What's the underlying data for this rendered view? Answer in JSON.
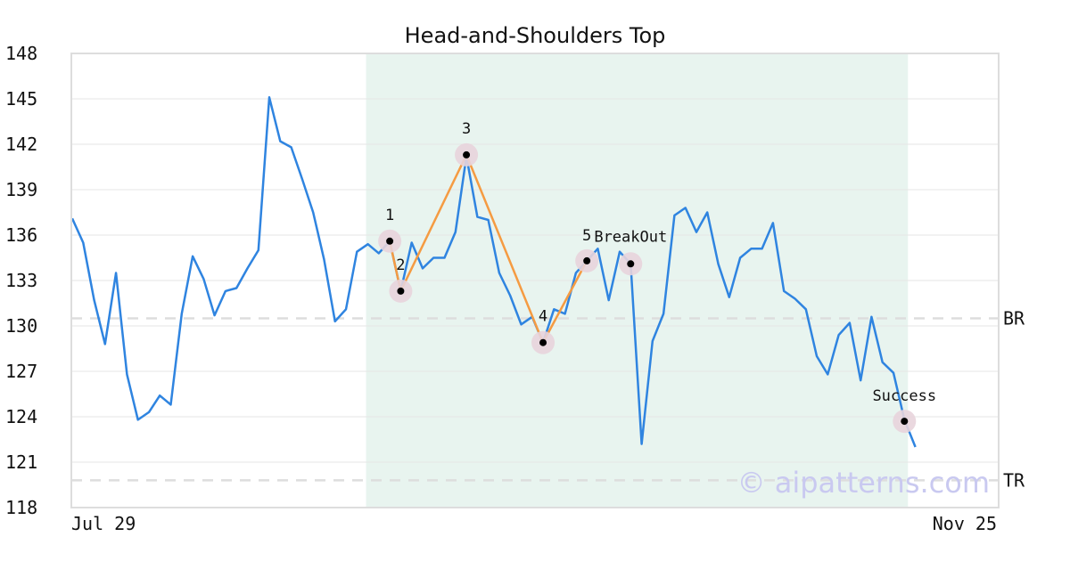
{
  "chart_data": {
    "type": "line",
    "title": "Head-and-Shoulders Top",
    "ylim": [
      118,
      148
    ],
    "yticks": [
      118,
      121,
      124,
      127,
      130,
      133,
      136,
      139,
      142,
      145,
      148
    ],
    "x_labels": [
      "Jul 29",
      "Nov 25"
    ],
    "grid": true,
    "colors": {
      "price": "#2f84e0",
      "pattern": "#f59b42",
      "highlight": "#e8f4ef",
      "marker_halo": "#e8d4dc",
      "reference": "#dddddd",
      "watermark": "#c9c9f0"
    },
    "series": [
      {
        "values": [
          137.1,
          135.5,
          131.7,
          128.8,
          133.5,
          126.8,
          123.8,
          124.3,
          125.4,
          124.8,
          130.8,
          134.6,
          133.1,
          130.7,
          132.3,
          132.5,
          133.8,
          135.0,
          145.1,
          142.2,
          141.8,
          139.7,
          137.5,
          134.4,
          130.3,
          131.1,
          134.9,
          135.4,
          134.8,
          135.6,
          132.3,
          135.5,
          133.8,
          134.5,
          134.5,
          136.2,
          141.2,
          137.2,
          137.0,
          133.5,
          132.0,
          130.1,
          130.6,
          128.9,
          131.1,
          130.8,
          133.5,
          134.3,
          135.1,
          131.7,
          134.9,
          134.1,
          122.2,
          129.0,
          130.8,
          137.3,
          137.8,
          136.2,
          137.5,
          134.1,
          131.9,
          134.5,
          135.1,
          135.1,
          136.8,
          132.3,
          131.8,
          131.1,
          128.0,
          126.8,
          129.4,
          130.2,
          126.4,
          130.6,
          127.6,
          126.9,
          123.8,
          122.0
        ]
      }
    ],
    "highlight_range": [
      27,
      76
    ],
    "pattern_points": [
      {
        "i": 29,
        "y": 135.6,
        "label": "1"
      },
      {
        "i": 30,
        "y": 132.3,
        "label": "2"
      },
      {
        "i": 36,
        "y": 141.3,
        "label": "3"
      },
      {
        "i": 43,
        "y": 128.9,
        "label": "4"
      },
      {
        "i": 47,
        "y": 134.3,
        "label": "5"
      }
    ],
    "breakout": {
      "i": 51,
      "y": 134.1,
      "label": "BreakOut"
    },
    "success": {
      "i": 76,
      "y": 123.7,
      "label": "Success"
    },
    "reference_lines": [
      {
        "label": "BR",
        "y": 130.5
      },
      {
        "label": "TR",
        "y": 119.8
      }
    ],
    "watermark": "© aipatterns.com"
  }
}
